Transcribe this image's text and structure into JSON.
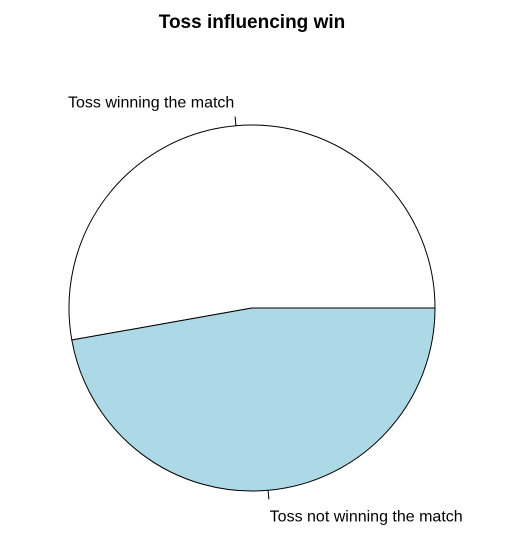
{
  "chart_data": {
    "type": "pie",
    "title": "Toss influencing win",
    "slices": [
      {
        "label": "Toss winning the match",
        "value": 52.8,
        "color": "#ffffff"
      },
      {
        "label": "Toss not winning the match",
        "value": 47.2,
        "color": "#add8e6"
      }
    ],
    "start_angle_deg": 0,
    "direction": "counterclockwise"
  }
}
